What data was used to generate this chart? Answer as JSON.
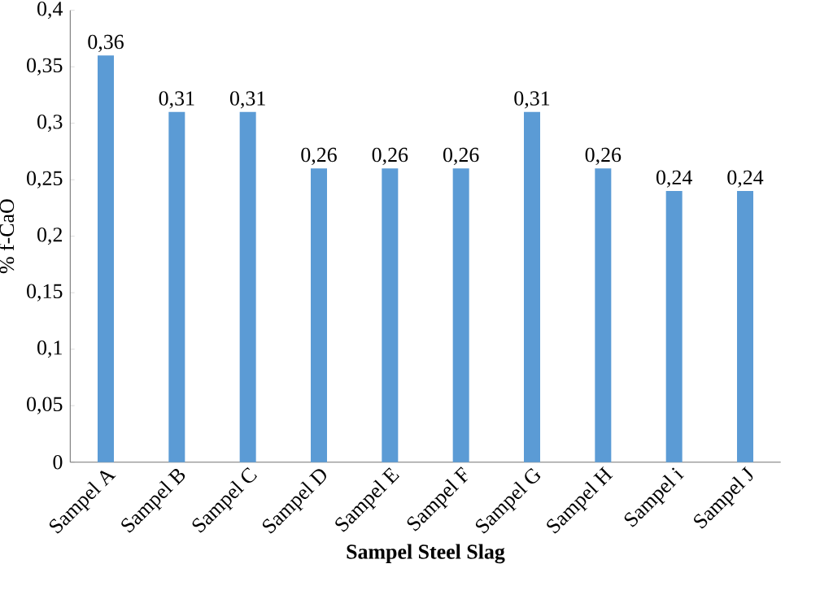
{
  "chart_data": {
    "type": "bar",
    "xlabel": "Sampel Steel Slag",
    "ylabel": "% f-CaO",
    "categories": [
      "Sampel A",
      "Sampel B",
      "Sampel C",
      "Sampel D",
      "Sampel E",
      "Sampel F",
      "Sampel G",
      "Sampel H",
      "Sampel i",
      "Sampel J"
    ],
    "values": [
      0.36,
      0.31,
      0.31,
      0.26,
      0.26,
      0.26,
      0.31,
      0.26,
      0.24,
      0.24
    ],
    "value_labels": [
      "0,36",
      "0,31",
      "0,31",
      "0,26",
      "0,26",
      "0,26",
      "0,31",
      "0,26",
      "0,24",
      "0,24"
    ],
    "color": "#5b9bd5",
    "ylim": [
      0,
      0.4
    ],
    "yticks": [
      0,
      {
        "value": 0.05,
        "label": "0,05"
      },
      {
        "value": 0.1,
        "label": "0,1"
      },
      {
        "value": 0.15,
        "label": "0,15"
      },
      {
        "value": 0.2,
        "label": "0,2"
      },
      {
        "value": 0.25,
        "label": "0,25"
      },
      {
        "value": 0.3,
        "label": "0,3"
      },
      {
        "value": 0.35,
        "label": "0,35"
      },
      {
        "value": 0.4,
        "label": "0,4"
      }
    ]
  }
}
